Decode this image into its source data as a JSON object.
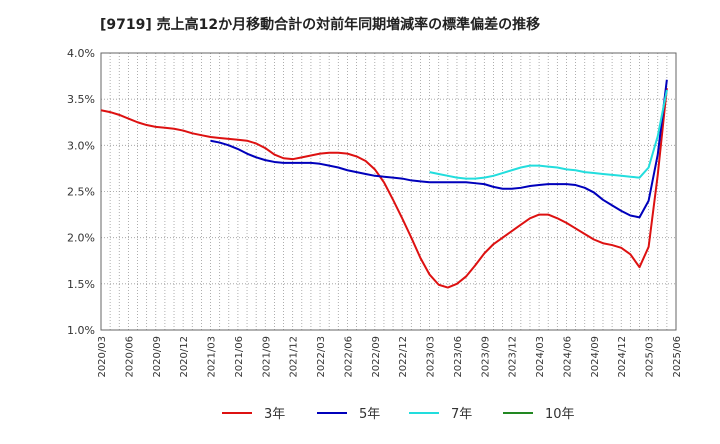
{
  "chart_data": {
    "type": "line",
    "title": "[9719]  売上高12か月移動合計の対前年同期増減率の標準偏差の推移",
    "xlabel": "",
    "ylabel": "",
    "x_ticks": [
      "2020/03",
      "2020/06",
      "2020/09",
      "2020/12",
      "2021/03",
      "2021/06",
      "2021/09",
      "2021/12",
      "2022/03",
      "2022/06",
      "2022/09",
      "2022/12",
      "2023/03",
      "2023/06",
      "2023/09",
      "2023/12",
      "2024/03",
      "2024/06",
      "2024/09",
      "2024/12",
      "2025/03",
      "2025/06"
    ],
    "y_ticks": [
      "1.0%",
      "1.5%",
      "2.0%",
      "2.5%",
      "3.0%",
      "3.5%",
      "4.0%"
    ],
    "ylim": [
      1.0,
      4.0
    ],
    "grid": true,
    "legend_position": "bottom",
    "series": [
      {
        "name": "3年",
        "color": "#dd1111",
        "points": [
          [
            "2020/03",
            3.38
          ],
          [
            "2020/04",
            3.36
          ],
          [
            "2020/05",
            3.33
          ],
          [
            "2020/06",
            3.29
          ],
          [
            "2020/07",
            3.25
          ],
          [
            "2020/08",
            3.22
          ],
          [
            "2020/09",
            3.2
          ],
          [
            "2020/10",
            3.19
          ],
          [
            "2020/11",
            3.18
          ],
          [
            "2020/12",
            3.16
          ],
          [
            "2021/01",
            3.13
          ],
          [
            "2021/02",
            3.11
          ],
          [
            "2021/03",
            3.09
          ],
          [
            "2021/04",
            3.08
          ],
          [
            "2021/05",
            3.07
          ],
          [
            "2021/06",
            3.06
          ],
          [
            "2021/07",
            3.05
          ],
          [
            "2021/08",
            3.02
          ],
          [
            "2021/09",
            2.97
          ],
          [
            "2021/10",
            2.9
          ],
          [
            "2021/11",
            2.86
          ],
          [
            "2021/12",
            2.85
          ],
          [
            "2022/01",
            2.87
          ],
          [
            "2022/02",
            2.89
          ],
          [
            "2022/03",
            2.91
          ],
          [
            "2022/04",
            2.92
          ],
          [
            "2022/05",
            2.92
          ],
          [
            "2022/06",
            2.91
          ],
          [
            "2022/07",
            2.88
          ],
          [
            "2022/08",
            2.83
          ],
          [
            "2022/09",
            2.74
          ],
          [
            "2022/10",
            2.6
          ],
          [
            "2022/11",
            2.41
          ],
          [
            "2022/12",
            2.21
          ],
          [
            "2023/01",
            2.0
          ],
          [
            "2023/02",
            1.78
          ],
          [
            "2023/03",
            1.6
          ],
          [
            "2023/04",
            1.49
          ],
          [
            "2023/05",
            1.46
          ],
          [
            "2023/06",
            1.5
          ],
          [
            "2023/07",
            1.58
          ],
          [
            "2023/08",
            1.7
          ],
          [
            "2023/09",
            1.83
          ],
          [
            "2023/10",
            1.93
          ],
          [
            "2023/11",
            2.0
          ],
          [
            "2023/12",
            2.07
          ],
          [
            "2024/01",
            2.14
          ],
          [
            "2024/02",
            2.21
          ],
          [
            "2024/03",
            2.25
          ],
          [
            "2024/04",
            2.25
          ],
          [
            "2024/05",
            2.21
          ],
          [
            "2024/06",
            2.16
          ],
          [
            "2024/07",
            2.1
          ],
          [
            "2024/08",
            2.04
          ],
          [
            "2024/09",
            1.98
          ],
          [
            "2024/10",
            1.94
          ],
          [
            "2024/11",
            1.92
          ],
          [
            "2024/12",
            1.89
          ],
          [
            "2025/01",
            1.82
          ],
          [
            "2025/02",
            1.68
          ],
          [
            "2025/03",
            1.9
          ],
          [
            "2025/04",
            2.68
          ],
          [
            "2025/05",
            3.62
          ]
        ]
      },
      {
        "name": "5年",
        "color": "#0000bb",
        "points": [
          [
            "2021/03",
            3.05
          ],
          [
            "2021/04",
            3.03
          ],
          [
            "2021/05",
            3.0
          ],
          [
            "2021/06",
            2.96
          ],
          [
            "2021/07",
            2.91
          ],
          [
            "2021/08",
            2.87
          ],
          [
            "2021/09",
            2.84
          ],
          [
            "2021/10",
            2.82
          ],
          [
            "2021/11",
            2.81
          ],
          [
            "2021/12",
            2.81
          ],
          [
            "2022/01",
            2.81
          ],
          [
            "2022/02",
            2.81
          ],
          [
            "2022/03",
            2.8
          ],
          [
            "2022/04",
            2.78
          ],
          [
            "2022/05",
            2.76
          ],
          [
            "2022/06",
            2.73
          ],
          [
            "2022/07",
            2.71
          ],
          [
            "2022/08",
            2.69
          ],
          [
            "2022/09",
            2.67
          ],
          [
            "2022/10",
            2.66
          ],
          [
            "2022/11",
            2.65
          ],
          [
            "2022/12",
            2.64
          ],
          [
            "2023/01",
            2.62
          ],
          [
            "2023/02",
            2.61
          ],
          [
            "2023/03",
            2.6
          ],
          [
            "2023/04",
            2.6
          ],
          [
            "2023/05",
            2.6
          ],
          [
            "2023/06",
            2.6
          ],
          [
            "2023/07",
            2.6
          ],
          [
            "2023/08",
            2.59
          ],
          [
            "2023/09",
            2.58
          ],
          [
            "2023/10",
            2.55
          ],
          [
            "2023/11",
            2.53
          ],
          [
            "2023/12",
            2.53
          ],
          [
            "2024/01",
            2.54
          ],
          [
            "2024/02",
            2.56
          ],
          [
            "2024/03",
            2.57
          ],
          [
            "2024/04",
            2.58
          ],
          [
            "2024/05",
            2.58
          ],
          [
            "2024/06",
            2.58
          ],
          [
            "2024/07",
            2.57
          ],
          [
            "2024/08",
            2.54
          ],
          [
            "2024/09",
            2.49
          ],
          [
            "2024/10",
            2.41
          ],
          [
            "2024/11",
            2.35
          ],
          [
            "2024/12",
            2.29
          ],
          [
            "2025/01",
            2.24
          ],
          [
            "2025/02",
            2.22
          ],
          [
            "2025/03",
            2.4
          ],
          [
            "2025/04",
            2.9
          ],
          [
            "2025/05",
            3.71
          ]
        ]
      },
      {
        "name": "7年",
        "color": "#22dddd",
        "points": [
          [
            "2023/03",
            2.71
          ],
          [
            "2023/04",
            2.69
          ],
          [
            "2023/05",
            2.67
          ],
          [
            "2023/06",
            2.65
          ],
          [
            "2023/07",
            2.64
          ],
          [
            "2023/08",
            2.64
          ],
          [
            "2023/09",
            2.65
          ],
          [
            "2023/10",
            2.67
          ],
          [
            "2023/11",
            2.7
          ],
          [
            "2023/12",
            2.73
          ],
          [
            "2024/01",
            2.76
          ],
          [
            "2024/02",
            2.78
          ],
          [
            "2024/03",
            2.78
          ],
          [
            "2024/04",
            2.77
          ],
          [
            "2024/05",
            2.76
          ],
          [
            "2024/06",
            2.74
          ],
          [
            "2024/07",
            2.73
          ],
          [
            "2024/08",
            2.71
          ],
          [
            "2024/09",
            2.7
          ],
          [
            "2024/10",
            2.69
          ],
          [
            "2024/11",
            2.68
          ],
          [
            "2024/12",
            2.67
          ],
          [
            "2025/01",
            2.66
          ],
          [
            "2025/02",
            2.65
          ],
          [
            "2025/03",
            2.76
          ],
          [
            "2025/04",
            3.1
          ],
          [
            "2025/05",
            3.6
          ]
        ]
      },
      {
        "name": "10年",
        "color": "#228822",
        "points": []
      }
    ]
  }
}
